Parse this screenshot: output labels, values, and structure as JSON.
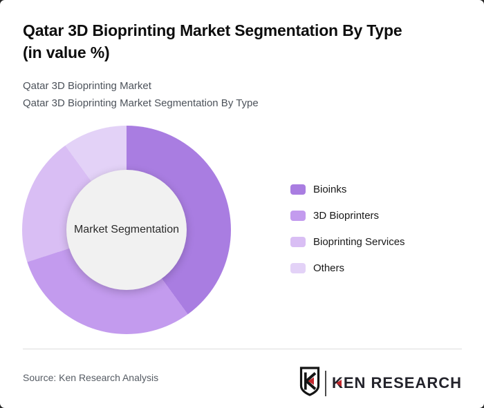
{
  "header": {
    "title_line1": "Qatar 3D Bioprinting Market Segmentation By Type",
    "title_line2": "(in value %)",
    "subtitle_line1": "Qatar 3D Bioprinting Market",
    "subtitle_line2": "Qatar 3D Bioprinting Market Segmentation By Type"
  },
  "chart_data": {
    "type": "pie",
    "variant": "donut",
    "title": "Qatar 3D Bioprinting Market Segmentation By Type (in value %)",
    "center_label": "Market Segmentation",
    "categories": [
      "Bioinks",
      "3D Bioprinters",
      "Bioprinting Services",
      "Others"
    ],
    "values": [
      40,
      30,
      20,
      10
    ],
    "unit": "percent",
    "colors": [
      "#a97de1",
      "#c39bee",
      "#d9bef4",
      "#e3d2f7"
    ],
    "start_angle_deg": 0,
    "direction": "clockwise",
    "legend_position": "right",
    "hole_color": "#f1f1f1"
  },
  "footer": {
    "source": "Source: Ken Research Analysis",
    "logo_shield_letter": "K",
    "logo_text": "KEN RESEARCH",
    "logo_accent_color": "#c1272d"
  },
  "colors": {
    "title": "#0d0d0d",
    "subtitle": "#4c525a",
    "divider": "#dcdcdc",
    "logo_red": "#c1272d"
  }
}
